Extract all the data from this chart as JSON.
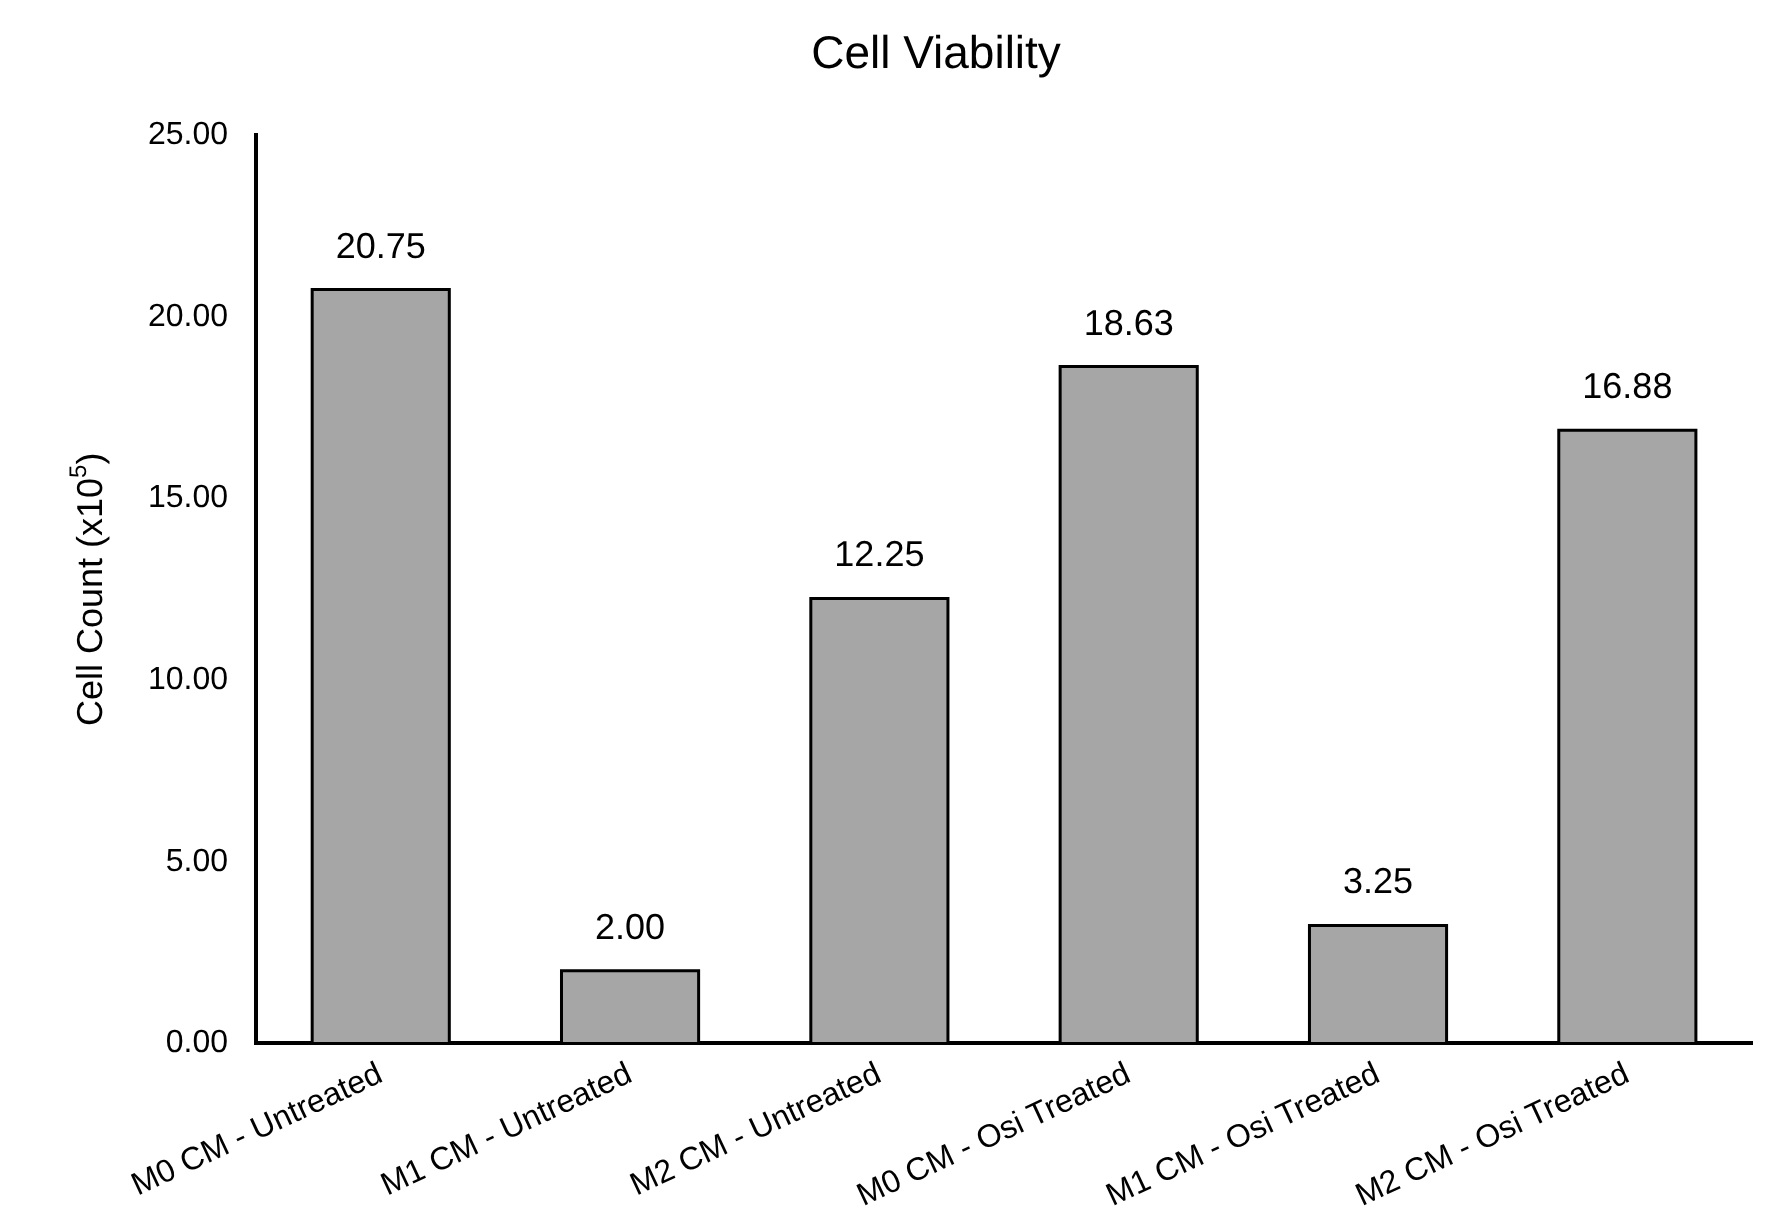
{
  "chart_data": {
    "type": "bar",
    "title": "Cell Viability",
    "ylabel": "Cell Count (x10$^{5}$)",
    "categories": [
      "M0 CM - Untreated",
      "M1 CM - Untreated",
      "M2 CM - Untreated",
      "M0 CM - Osi Treated",
      "M1 CM - Osi Treated",
      "M2 CM - Osi Treated"
    ],
    "values": [
      20.75,
      2.0,
      12.25,
      18.63,
      3.25,
      16.88
    ],
    "color": "#a6a6a6",
    "ylim": [
      0,
      25
    ],
    "yticks": [
      {
        "value": 0,
        "label": "0.00"
      },
      {
        "value": 5,
        "label": "5.00"
      },
      {
        "value": 10,
        "label": "10.00"
      },
      {
        "value": 15,
        "label": "15.00"
      },
      {
        "value": 20,
        "label": "20.00"
      },
      {
        "value": 25,
        "label": "25.00"
      }
    ],
    "value_labels": [
      "20.75",
      "2.00",
      "12.25",
      "18.63",
      "3.25",
      "16.88"
    ],
    "grid": false,
    "legend": false
  }
}
